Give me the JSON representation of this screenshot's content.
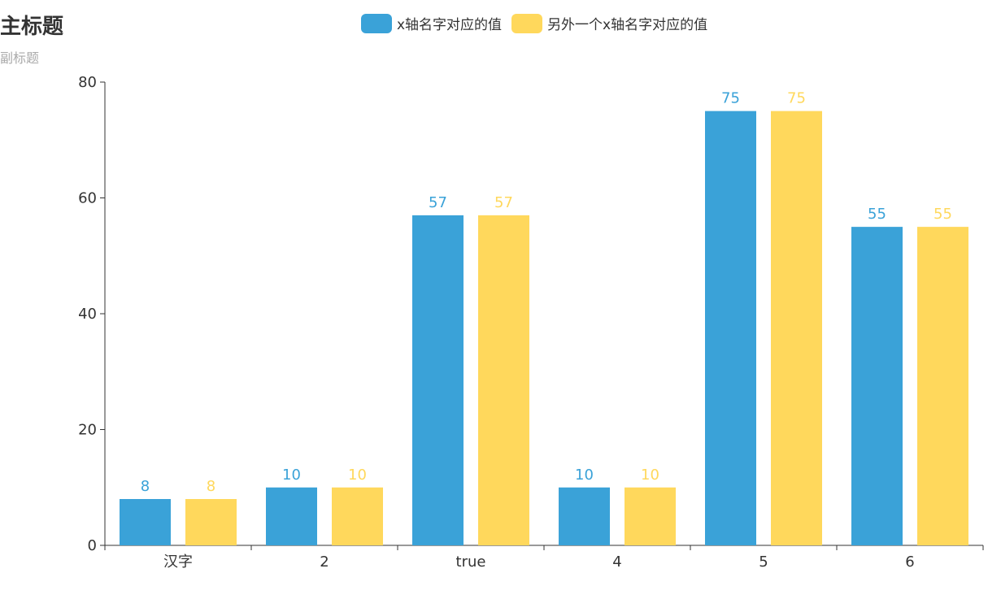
{
  "colors": {
    "series1": "#3aa2d8",
    "series2": "#ffd85c",
    "axis": "#333333"
  },
  "chart_data": {
    "type": "bar",
    "title": "主标题",
    "subtitle": "副标题",
    "categories": [
      "汉字",
      "2",
      "true",
      "4",
      "5",
      "6"
    ],
    "series": [
      {
        "name": "x轴名字对应的值",
        "values": [
          8,
          10,
          57,
          10,
          75,
          55
        ]
      },
      {
        "name": "另外一个x轴名字对应的值",
        "values": [
          8,
          10,
          57,
          10,
          75,
          55
        ]
      }
    ],
    "ylim": [
      0,
      80
    ],
    "yticks": [
      0,
      20,
      40,
      60,
      80
    ],
    "legend_position": "top-center",
    "data_labels": "top",
    "grid": false
  }
}
